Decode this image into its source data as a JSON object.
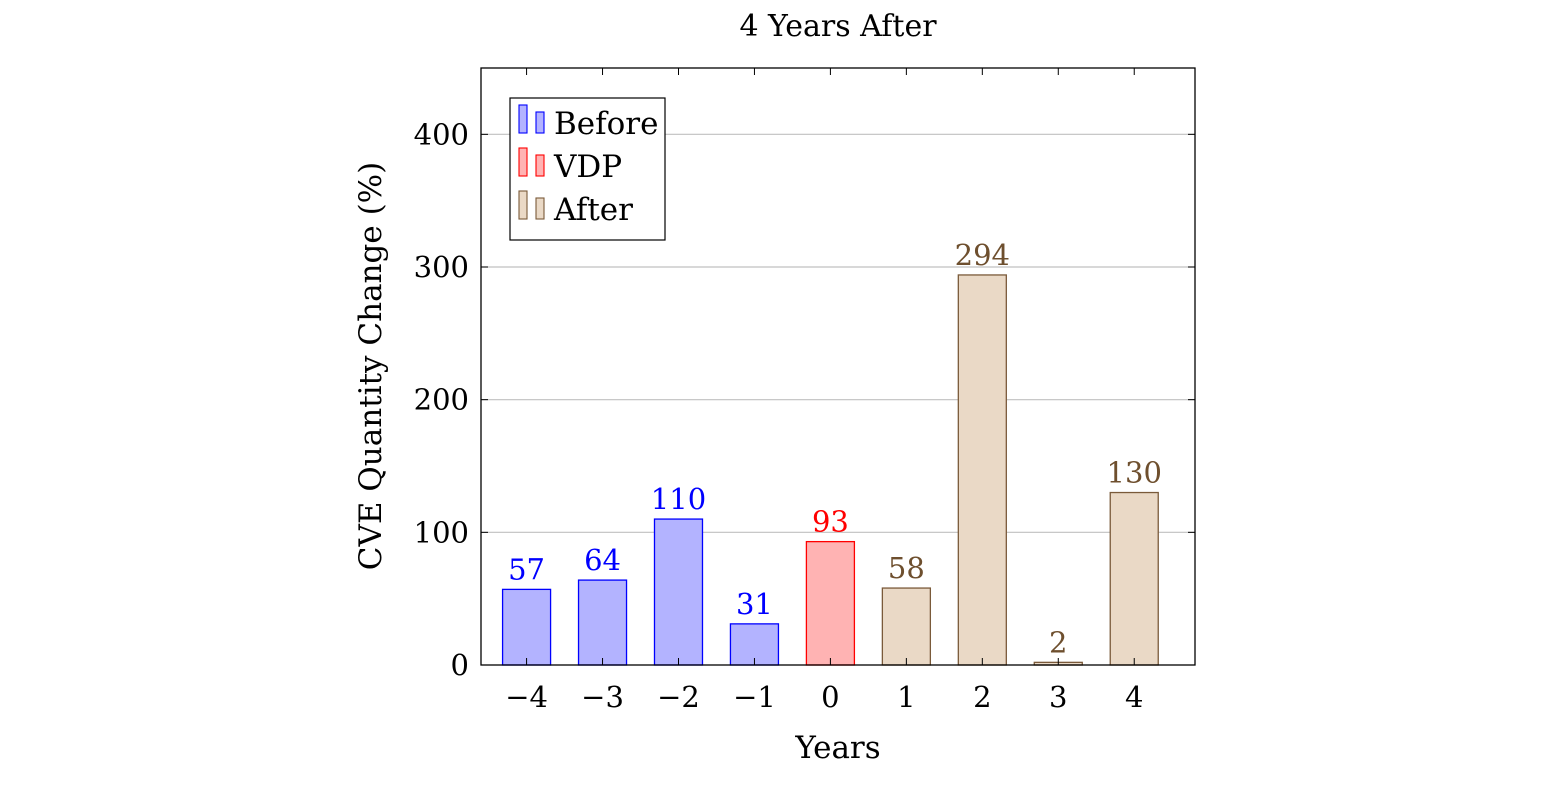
{
  "chart_data": {
    "type": "bar",
    "title": "4 Years After",
    "xlabel": "Years",
    "ylabel": "CVE Quantity Change (%)",
    "ylim": [
      0,
      450
    ],
    "yticks": [
      0,
      100,
      200,
      300,
      400
    ],
    "grid": "horizontal",
    "legend_position": "top-left",
    "categories": [
      "−4",
      "−3",
      "−2",
      "−1",
      "0",
      "1",
      "2",
      "3",
      "4"
    ],
    "x": [
      -4,
      -3,
      -2,
      -1,
      0,
      1,
      2,
      3,
      4
    ],
    "values": [
      57,
      64,
      110,
      31,
      93,
      58,
      294,
      2,
      130
    ],
    "data_labels": [
      "57",
      "64",
      "110",
      "31",
      "93",
      "58",
      "294",
      "2",
      "130"
    ],
    "groups": [
      "Before",
      "Before",
      "Before",
      "Before",
      "VDP",
      "After",
      "After",
      "After",
      "After"
    ],
    "legend": [
      {
        "name": "Before",
        "fill": "#b3b3ff",
        "stroke": "#0000ff",
        "label_color": "#0000ff"
      },
      {
        "name": "VDP",
        "fill": "#ffb3b3",
        "stroke": "#ff0000",
        "label_color": "#ff0000"
      },
      {
        "name": "After",
        "fill": "#ead9c6",
        "stroke": "#7a5a3a",
        "label_color": "#6e4f2e"
      }
    ]
  }
}
